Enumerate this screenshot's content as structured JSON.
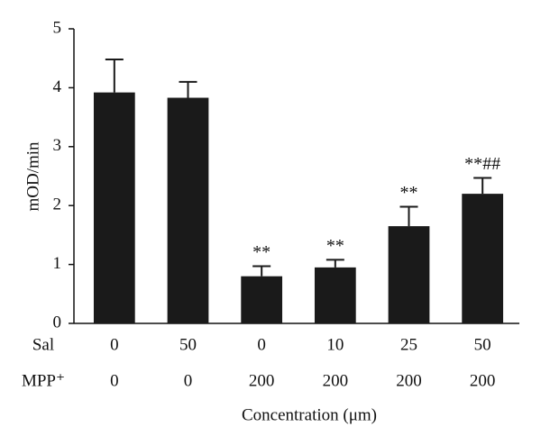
{
  "chart_data": {
    "type": "bar",
    "y_label": "mOD/min",
    "x_label": "Concentration (μm)",
    "category_rows": [
      {
        "label": "Sal",
        "values": [
          "0",
          "50",
          "0",
          "10",
          "25",
          "50"
        ]
      },
      {
        "label": "MPP⁺",
        "values": [
          "0",
          "0",
          "200",
          "200",
          "200",
          "200"
        ]
      }
    ],
    "values": [
      3.92,
      3.83,
      0.8,
      0.95,
      1.65,
      2.2
    ],
    "errors": [
      0.56,
      0.27,
      0.17,
      0.13,
      0.33,
      0.27
    ],
    "annotations": [
      null,
      null,
      "**",
      "**",
      "**",
      "**##"
    ],
    "color": "#1a1a1a",
    "ylim": [
      0,
      5
    ],
    "yticks": [
      0,
      1,
      2,
      3,
      4,
      5
    ],
    "grid": false
  }
}
